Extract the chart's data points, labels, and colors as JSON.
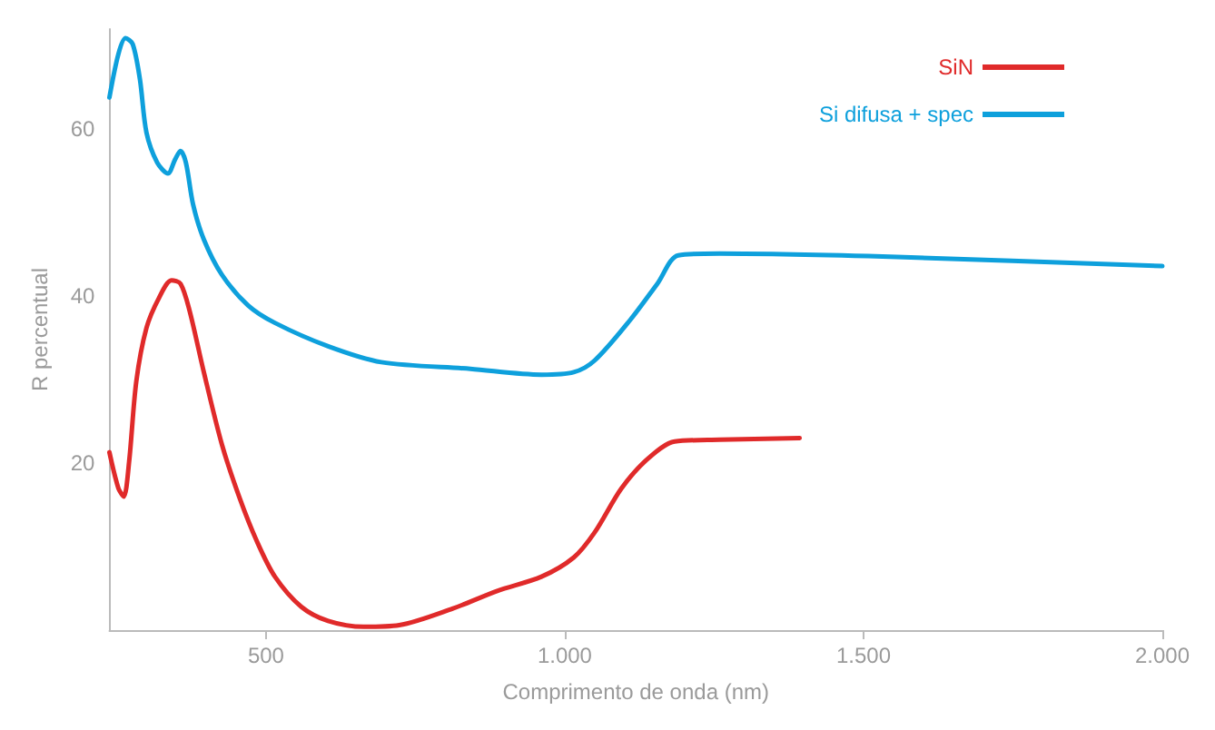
{
  "chart_data": {
    "type": "line",
    "xlabel": "Comprimento de onda (nm)",
    "ylabel": "R percentual",
    "xlim": [
      238,
      2000
    ],
    "ylim": [
      0,
      72
    ],
    "xticks": [
      {
        "value": 500,
        "label": "500"
      },
      {
        "value": 1000,
        "label": "1.000"
      },
      {
        "value": 1500,
        "label": "1.500"
      },
      {
        "value": 2000,
        "label": "2.000"
      }
    ],
    "yticks": [
      20,
      40,
      60
    ],
    "grid": false,
    "legend": "top right",
    "marker": "none",
    "line_style": "solid",
    "series": [
      {
        "name": "SiN",
        "color": "#e02a2a",
        "x": [
          238,
          253,
          262,
          271,
          283,
          300,
          321,
          342,
          357,
          372,
          396,
          426,
          455,
          485,
          515,
          559,
          604,
          664,
          723,
          813,
          887,
          961,
          1015,
          1050,
          1095,
          1140,
          1184,
          1259,
          1393
        ],
        "values": [
          21.3,
          17,
          16,
          20.2,
          29.8,
          36.2,
          39.8,
          41.9,
          41.5,
          38.3,
          30.9,
          22.3,
          16,
          10.6,
          6.4,
          2.8,
          1.1,
          0.4,
          0.6,
          2.6,
          4.7,
          6.4,
          8.7,
          11.7,
          17,
          20.6,
          22.6,
          22.8,
          23
        ]
      },
      {
        "name": "Si difusa + spec",
        "color": "#0ea0dc",
        "x": [
          238,
          253,
          265,
          277,
          289,
          300,
          318,
          336,
          348,
          357,
          366,
          378,
          396,
          426,
          470,
          515,
          604,
          693,
          842,
          961,
          1015,
          1050,
          1110,
          1155,
          1190,
          1259,
          1556,
          2000
        ],
        "values": [
          63.8,
          69,
          70.9,
          70.2,
          66,
          59.6,
          56,
          54.7,
          56.4,
          57.4,
          56,
          51,
          46.8,
          42.6,
          38.9,
          36.8,
          34,
          32.1,
          31.3,
          30.6,
          30.9,
          32.3,
          37.2,
          41.5,
          44.9,
          45.1,
          44.7,
          43.6
        ]
      }
    ]
  }
}
